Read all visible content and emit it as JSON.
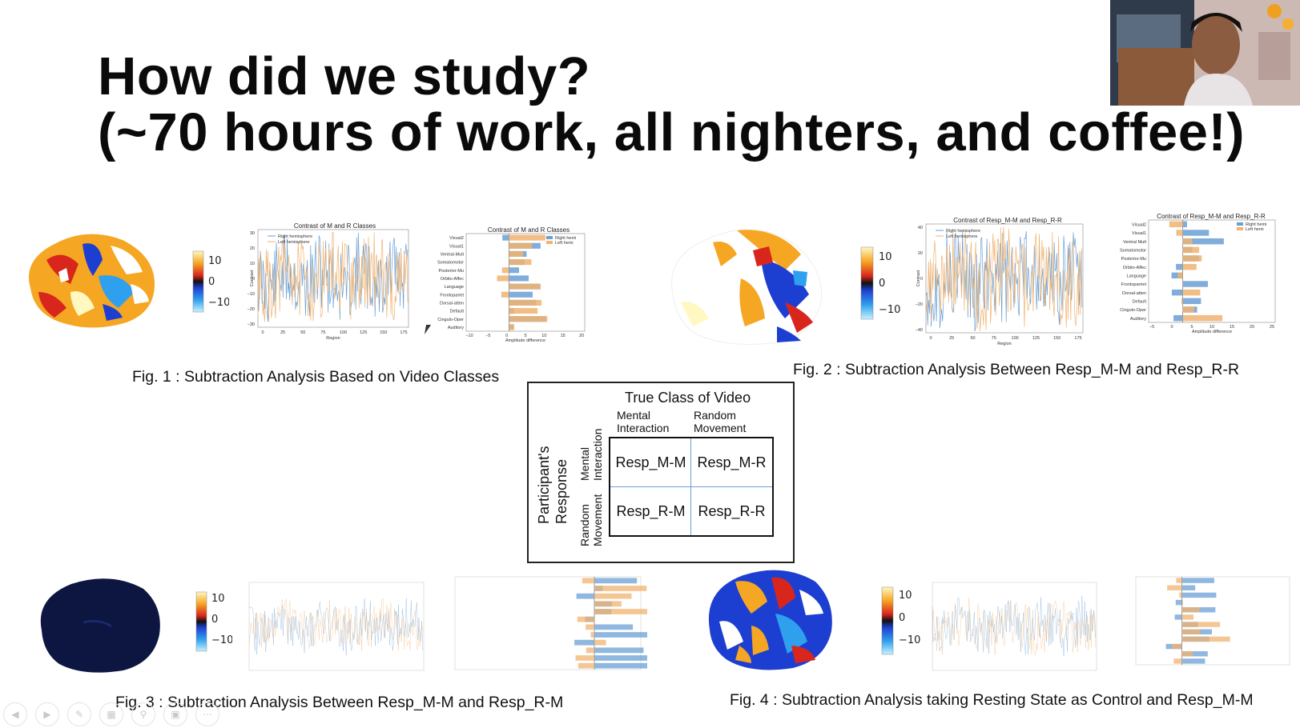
{
  "slide": {
    "title_line1": "How did we study?",
    "title_line2": "(~70 hours of work, all nighters, and coffee!)"
  },
  "colorbar": {
    "top": "10",
    "mid": "0",
    "bottom": "−10"
  },
  "fig1": {
    "caption": "Fig. 1 : Subtraction Analysis Based on Video Classes",
    "line_title": "Contrast of M and R Classes",
    "line_legend": [
      "Right hemisphere",
      "Left hemisphere"
    ],
    "line_xlabel": "Region",
    "line_ylabel": "Contrast",
    "line_yticks": [
      "30",
      "20",
      "10",
      "0",
      "−10",
      "−20",
      "−30"
    ],
    "line_xticks": [
      "0",
      "25",
      "50",
      "75",
      "100",
      "125",
      "150",
      "175"
    ],
    "bar_title": "Contrast of M and R Classes",
    "bar_legend": [
      "Right hemi",
      "Left hemi"
    ],
    "bar_xlabel": "Amplitude difference",
    "bar_xticks": [
      "−10",
      "−5",
      "0",
      "5",
      "10",
      "15",
      "20"
    ],
    "bar_categories": [
      "Visual2",
      "Visual1",
      "Ventral-Mult",
      "Somatomotor",
      "Posterior-Mu",
      "Orbito-Affec",
      "Language",
      "Frontopariet",
      "Dorsal-atten",
      "Default",
      "Cingulo-Oper",
      "Auditory"
    ]
  },
  "fig2": {
    "caption": "Fig. 2 : Subtraction Analysis Between Resp_M-M and Resp_R-R",
    "line_title": "Contrast of Resp_M-M and Resp_R-R",
    "line_legend": [
      "Right hemisphere",
      "Left hemisphere"
    ],
    "line_xlabel": "Region",
    "line_ylabel": "Contrast",
    "line_yticks": [
      "40",
      "20",
      "0",
      "−20",
      "−40"
    ],
    "line_xticks": [
      "0",
      "25",
      "50",
      "75",
      "100",
      "125",
      "150",
      "175"
    ],
    "bar_title": "Contrast of Resp_M-M and Resp_R-R",
    "bar_legend": [
      "Right hemi",
      "Left hemi"
    ],
    "bar_xlabel": "Amplitude difference",
    "bar_xticks": [
      "−5",
      "0",
      "5",
      "10",
      "15",
      "20",
      "25"
    ],
    "bar_categories": [
      "Visual2",
      "Visual1",
      "Ventral Mult",
      "Somatomotor",
      "Posterior-Mu",
      "Orbito-Affec",
      "Language",
      "Frontoparriet",
      "Dorsal-atten",
      "Default",
      "Cingulo-Oper",
      "Auditory"
    ]
  },
  "fig3": {
    "caption": "Fig. 3 : Subtraction Analysis Between Resp_M-M and Resp_R-M"
  },
  "fig4": {
    "caption": "Fig. 4 : Subtraction Analysis taking Resting State as Control and Resp_M-M"
  },
  "matrix": {
    "header": "True Class of Video",
    "col1": [
      "Mental",
      "Interaction"
    ],
    "col2": [
      "Random",
      "Movement"
    ],
    "row_axis": [
      "Participant's",
      "Response"
    ],
    "row1": [
      "Mental",
      "Interaction"
    ],
    "row2": [
      "Random",
      "Movement"
    ],
    "cells": [
      "Resp_M-M",
      "Resp_M-R",
      "Resp_R-M",
      "Resp_R-R"
    ]
  },
  "colors": {
    "right_hemi": "#6a9fd4",
    "left_hemi": "#f0b370",
    "accent_orange": "#f5a623"
  }
}
